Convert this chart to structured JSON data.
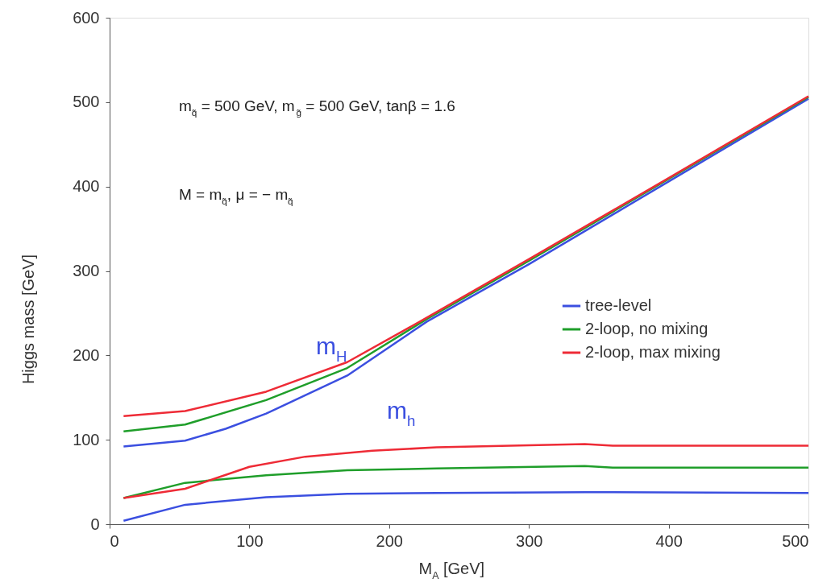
{
  "chart_data": {
    "type": "line",
    "xlabel": "M$_{A}$ [GeV]",
    "ylabel": "Higgs mass [GeV]",
    "xlim": [
      0,
      500
    ],
    "ylim": [
      0,
      600
    ],
    "xticks": [
      0,
      100,
      200,
      300,
      400,
      500
    ],
    "yticks": [
      0,
      100,
      200,
      300,
      400,
      500,
      600
    ],
    "grid": false,
    "legend": "right",
    "marker": "none",
    "line_style": "solid",
    "series": [
      {
        "name": "tree-level",
        "color": "#3b4fe0",
        "x": [
          10,
          54,
          83,
          112,
          170,
          227,
          300,
          400,
          500
        ],
        "values": [
          92,
          99,
          113,
          131,
          176,
          240,
          308,
          406,
          504
        ]
      },
      {
        "name": "2-loop, no mixing",
        "color": "#1f9e2a",
        "x": [
          10,
          54,
          112,
          170,
          227,
          300,
          400,
          500
        ],
        "values": [
          110,
          118,
          147,
          185,
          243,
          312,
          409,
          506
        ]
      },
      {
        "name": "2-loop, max mixing",
        "color": "#ee2b36",
        "x": [
          10,
          54,
          112,
          170,
          222,
          300,
          400,
          500
        ],
        "values": [
          128,
          134,
          157,
          192,
          240,
          314,
          410,
          507
        ]
      },
      {
        "color": "#3b4fe0",
        "x": [
          10,
          54,
          112,
          170,
          234,
          340,
          500
        ],
        "values": [
          4,
          23,
          32,
          36,
          37,
          38,
          37
        ]
      },
      {
        "color": "#1f9e2a",
        "x": [
          10,
          54,
          112,
          170,
          234,
          340,
          360,
          500
        ],
        "values": [
          31,
          49,
          58,
          64,
          66,
          69,
          67,
          67
        ]
      },
      {
        "color": "#ee2b36",
        "x": [
          10,
          54,
          100,
          140,
          188,
          234,
          340,
          360,
          500
        ],
        "values": [
          31,
          42,
          68,
          80,
          87,
          91,
          95,
          93,
          93
        ]
      }
    ],
    "annotations": [
      "m$_{q̃}$ = 500 GeV, m$_{g̃}$ = 500 GeV, tanβ = 1.6",
      "M = m$_{q̃}$, μ = − m$_{q̃}$",
      "m$_{H}$",
      "m$_{h}$"
    ]
  }
}
